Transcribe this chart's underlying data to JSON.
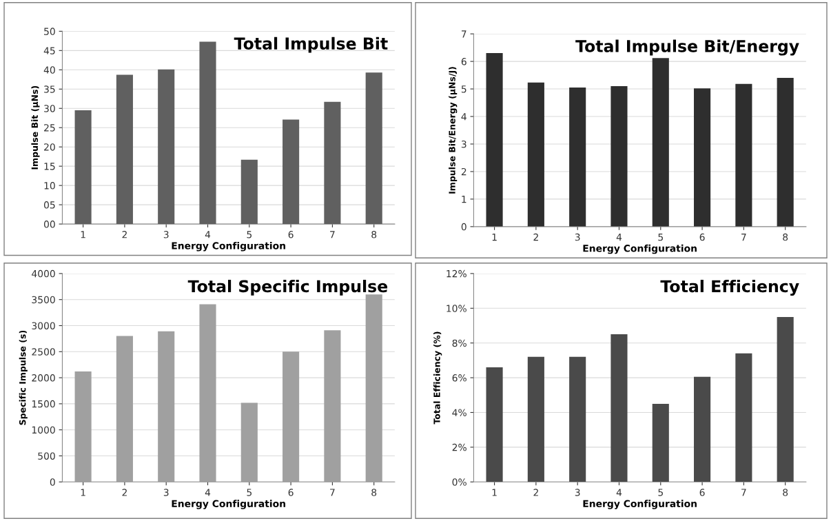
{
  "chart_data": [
    {
      "type": "bar",
      "title": "Total Impulse Bit",
      "xlabel": "Energy Configuration",
      "ylabel": "Impulse Bit (µNs)",
      "categories": [
        "1",
        "2",
        "3",
        "4",
        "5",
        "6",
        "7",
        "8"
      ],
      "color": "#606060",
      "values": [
        29.5,
        38.7,
        40.1,
        47.3,
        16.7,
        27.1,
        31.7,
        39.3
      ],
      "ylim": [
        0,
        50
      ],
      "yticks": [
        {
          "value": 0,
          "label": "00"
        },
        {
          "value": 5,
          "label": "05"
        },
        10,
        15,
        20,
        25,
        30,
        35,
        40,
        45,
        50
      ],
      "grid": "y"
    },
    {
      "type": "bar",
      "title": "Total Impulse Bit/Energy",
      "xlabel": "Energy Configuration",
      "ylabel": "Impulse Bit/Energy (µNs/J)",
      "categories": [
        "1",
        "2",
        "3",
        "4",
        "5",
        "6",
        "7",
        "8"
      ],
      "color": "#2e2e2e",
      "values": [
        6.3,
        5.23,
        5.05,
        5.1,
        6.12,
        5.02,
        5.18,
        5.4
      ],
      "ylim": [
        0,
        7
      ],
      "yticks": [
        0,
        1,
        2,
        3,
        4,
        5,
        6,
        7
      ],
      "grid": "y"
    },
    {
      "type": "bar",
      "title": "Total Specific Impulse",
      "xlabel": "Energy Configuration",
      "ylabel": "Specific Impulse (s)",
      "categories": [
        "1",
        "2",
        "3",
        "4",
        "5",
        "6",
        "7",
        "8"
      ],
      "color": "#a0a0a0",
      "values": [
        2120,
        2800,
        2890,
        3410,
        1520,
        2500,
        2910,
        3600
      ],
      "ylim": [
        0,
        4000
      ],
      "yticks": [
        0,
        500,
        1000,
        1500,
        2000,
        2500,
        3000,
        3500,
        4000
      ],
      "grid": "y"
    },
    {
      "type": "bar",
      "title": "Total Efficiency",
      "xlabel": "Energy Configuration",
      "ylabel": "Total Efficiency (%)",
      "categories": [
        "1",
        "2",
        "3",
        "4",
        "5",
        "6",
        "7",
        "8"
      ],
      "color": "#4a4a4a",
      "values": [
        6.6,
        7.2,
        7.2,
        8.5,
        4.5,
        6.05,
        7.4,
        9.5
      ],
      "ylim": [
        0,
        12
      ],
      "yticks": [
        {
          "value": 0,
          "label": "0%"
        },
        {
          "value": 2,
          "label": "2%"
        },
        {
          "value": 4,
          "label": "4%"
        },
        {
          "value": 6,
          "label": "6%"
        },
        {
          "value": 8,
          "label": "8%"
        },
        {
          "value": 10,
          "label": "10%"
        },
        {
          "value": 12,
          "label": "12%"
        }
      ],
      "grid": "y"
    }
  ]
}
